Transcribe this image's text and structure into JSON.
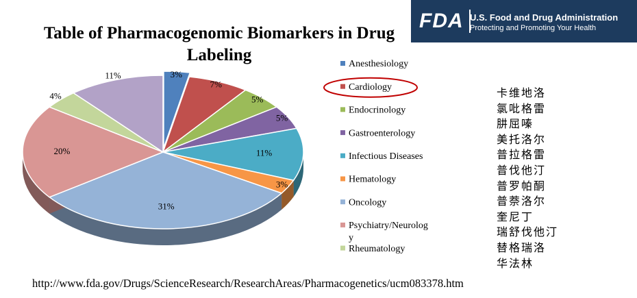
{
  "chart_data": {
    "type": "pie3d",
    "title": "Table of Pharmacogenomic Biomarkers in Drug Labeling",
    "categories": [
      "Anesthesiology",
      "Cardiology",
      "Endocrinology",
      "Gastroenterology",
      "Infectious Diseases",
      "Hematology",
      "Oncology",
      "Psychiatry/Neurology",
      "Rheumatology",
      null
    ],
    "values": [
      3,
      7,
      5,
      5,
      11,
      3,
      31,
      20,
      4,
      11
    ],
    "value_labels": [
      "3%",
      "7%",
      "5%",
      "5%",
      "11%",
      "3%",
      "31%",
      "20%",
      "4%",
      "11%"
    ],
    "colors": [
      "#4f81bd",
      "#c0504d",
      "#9bbb59",
      "#8064a2",
      "#4bacc6",
      "#f79646",
      "#95b3d7",
      "#d99694",
      "#c3d69b",
      "#b2a2c7"
    ],
    "highlight": "Cardiology"
  },
  "header": {
    "logo": "FDA",
    "title": "U.S. Food and Drug Administration",
    "tagline": "Protecting and Promoting Your Health"
  },
  "drugs": [
    "卡维地洛",
    "氯吡格雷",
    "肼屈嗪",
    "美托洛尔",
    "普拉格雷",
    "普伐他汀",
    "普罗帕酮",
    "普萘洛尔",
    "奎尼丁",
    "瑞舒伐他汀",
    "替格瑞洛",
    "华法林"
  ],
  "url": "http://www.fda.gov/Drugs/ScienceResearch/ResearchAreas/Pharmacogenetics/ucm083378.htm"
}
